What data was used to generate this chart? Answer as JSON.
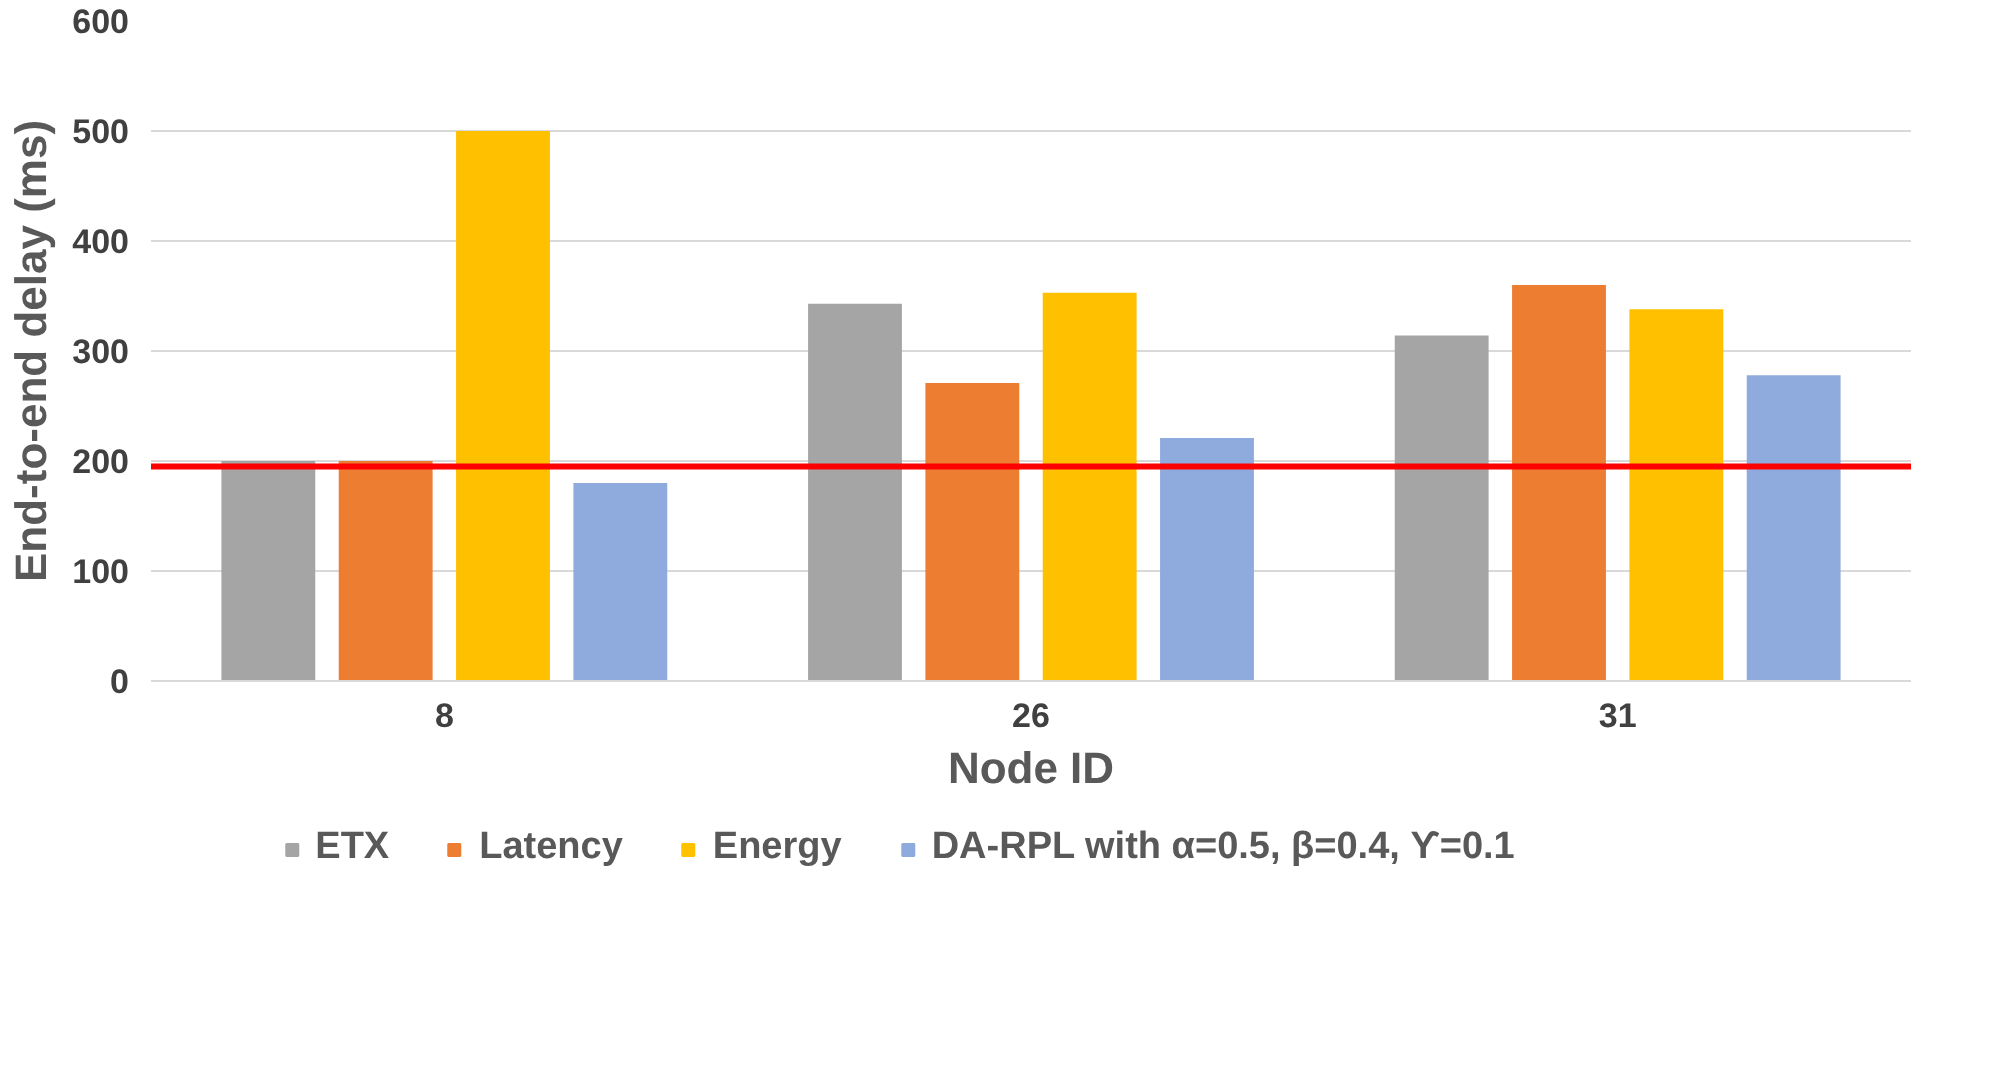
{
  "chart_data": {
    "type": "bar",
    "xlabel": "Node ID",
    "ylabel": "End-to-end delay (ms)",
    "categories": [
      "8",
      "26",
      "31"
    ],
    "series": [
      {
        "name": "ETX",
        "color": "#a5a5a5",
        "values": [
          200,
          343,
          314
        ]
      },
      {
        "name": "Latency",
        "color": "#ed7d31",
        "values": [
          200,
          271,
          360
        ]
      },
      {
        "name": "Energy",
        "color": "#ffc000",
        "values": [
          500,
          353,
          338
        ]
      },
      {
        "name": "DA-RPL with α=0.5, β=0.4, ϒ=0.1",
        "color": "#8faadc",
        "values": [
          180,
          221,
          278
        ]
      }
    ],
    "ylim": [
      0,
      600
    ],
    "yticks": [
      0,
      100,
      200,
      300,
      400,
      500,
      600
    ],
    "grid": "y",
    "legend": "bottom",
    "ref_lines": [
      {
        "axis": "y",
        "value": 195,
        "color": "#ff0000"
      }
    ]
  }
}
